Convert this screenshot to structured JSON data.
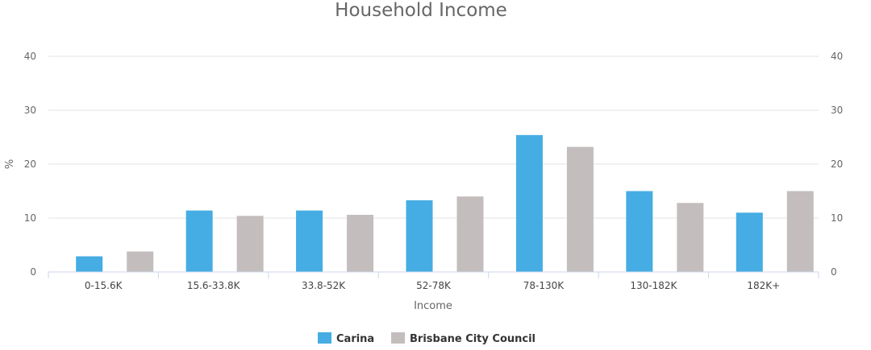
{
  "chart_data": {
    "type": "bar",
    "title": "Household Income",
    "xlabel": "Income",
    "ylabel": "%",
    "ylim": [
      0,
      40
    ],
    "yticks": [
      0,
      10,
      20,
      30,
      40
    ],
    "categories": [
      "0-15.6K",
      "15.6-33.8K",
      "33.8-52K",
      "52-78K",
      "78-130K",
      "130-182K",
      "182K+"
    ],
    "series": [
      {
        "name": "Carina",
        "color": "#45ade3",
        "values": [
          2.9,
          11.4,
          11.4,
          13.3,
          25.4,
          15.0,
          11.0
        ]
      },
      {
        "name": "Brisbane City Council",
        "color": "#c3bebd",
        "values": [
          3.8,
          10.4,
          10.6,
          14.0,
          23.2,
          12.8,
          15.0
        ]
      }
    ],
    "grid": true,
    "legend_position": "bottom-center",
    "dual_y_axis": true
  }
}
